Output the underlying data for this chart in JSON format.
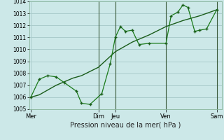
{
  "xlabel": "Pression niveau de la mer( hPa )",
  "ylim": [
    1005,
    1014
  ],
  "yticks": [
    1005,
    1006,
    1007,
    1008,
    1009,
    1010,
    1011,
    1012,
    1013,
    1014
  ],
  "day_labels": [
    "Mer",
    "Dim",
    "Jeu",
    "Ven",
    "Sam"
  ],
  "day_positions": [
    0,
    4.0,
    5.0,
    8.0,
    11.0
  ],
  "background_color": "#cce8e8",
  "grid_color": "#aacccc",
  "line_dark": "#1a5c1a",
  "line_bright": "#1a7a1a",
  "smooth_x": [
    0,
    0.5,
    1.0,
    1.5,
    2.0,
    2.5,
    3.0,
    4.0,
    5.0,
    6.0,
    7.0,
    8.0,
    9.0,
    10.0,
    11.0
  ],
  "smooth_y": [
    1006.0,
    1006.2,
    1006.6,
    1007.0,
    1007.3,
    1007.6,
    1007.8,
    1008.5,
    1009.8,
    1010.6,
    1011.2,
    1011.9,
    1012.4,
    1012.8,
    1013.3
  ],
  "jagged_x": [
    0,
    0.5,
    1.0,
    1.5,
    2.0,
    2.7,
    3.0,
    3.5,
    4.2,
    4.7,
    5.0,
    5.3,
    5.6,
    6.0,
    6.4,
    7.0,
    8.0,
    8.3,
    8.7,
    9.0,
    9.3,
    9.7,
    10.0,
    10.4,
    11.0
  ],
  "jagged_y": [
    1006.0,
    1007.5,
    1007.8,
    1007.7,
    1007.2,
    1006.5,
    1005.5,
    1005.4,
    1006.3,
    1008.8,
    1011.0,
    1011.9,
    1011.5,
    1011.6,
    1010.4,
    1010.5,
    1010.5,
    1012.8,
    1013.1,
    1013.7,
    1013.5,
    1011.5,
    1011.6,
    1011.7,
    1013.3
  ],
  "vline_x": [
    4.0,
    5.0,
    8.0,
    11.0
  ],
  "xlim": [
    -0.1,
    11.3
  ]
}
